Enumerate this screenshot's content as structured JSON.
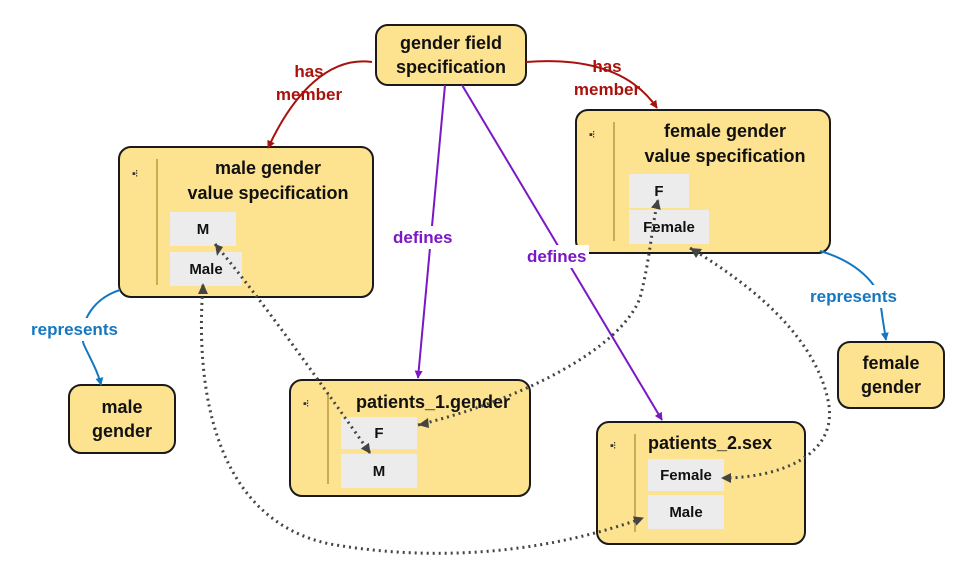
{
  "colors": {
    "node_fill": "#fde38f",
    "has_member": "#a8120c",
    "defines": "#7b17c4",
    "represents": "#1577c0",
    "link": "#444444"
  },
  "icons": {
    "container": "list-icon"
  },
  "nodes": {
    "gender_field_spec": {
      "lines": [
        "gender field",
        "specification"
      ]
    },
    "male_value_spec": {
      "lines": [
        "male gender",
        "value specification"
      ],
      "values": [
        "M",
        "Male"
      ]
    },
    "female_value_spec": {
      "lines": [
        "female gender",
        "value specification"
      ],
      "values": [
        "F",
        "Female"
      ]
    },
    "patients_1": {
      "title": "patients_1.gender",
      "values": [
        "F",
        "M"
      ]
    },
    "patients_2": {
      "title": "patients_2.sex",
      "values": [
        "Female",
        "Male"
      ]
    },
    "male_gender": {
      "lines": [
        "male",
        "gender"
      ]
    },
    "female_gender": {
      "lines": [
        "female",
        "gender"
      ]
    }
  },
  "labels": {
    "has_member_left": [
      "has",
      "member"
    ],
    "has_member_right": [
      "has",
      "member"
    ],
    "defines_left": "defines",
    "defines_right": "defines",
    "represents_left": "represents",
    "represents_right": "represents"
  }
}
